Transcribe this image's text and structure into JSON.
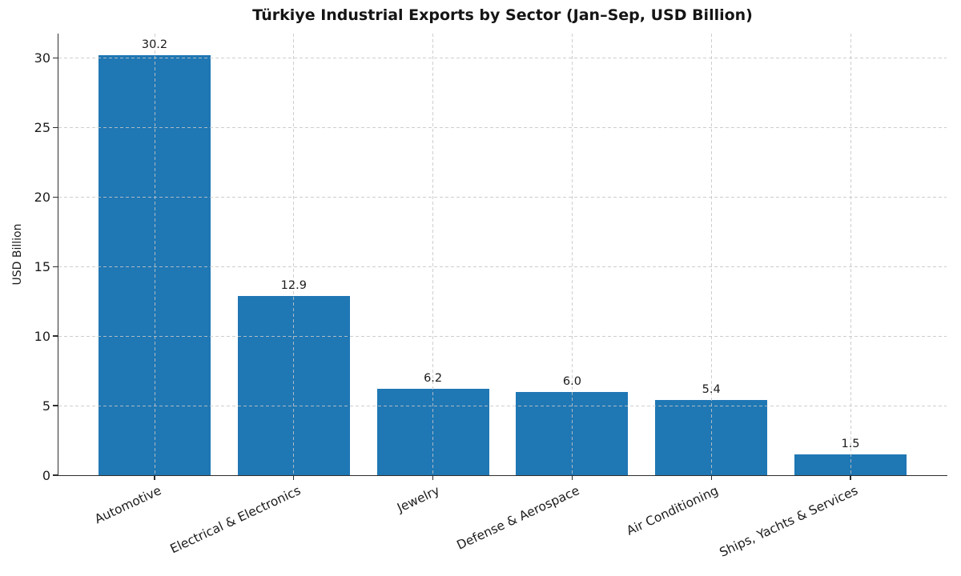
{
  "chart_data": {
    "type": "bar",
    "title": "Türkiye Industrial Exports by Sector (Jan–Sep, USD Billion)",
    "ylabel": "USD Billion",
    "xlabel": "",
    "categories": [
      "Automotive",
      "Electrical & Electronics",
      "Jewelry",
      "Defense & Aerospace",
      "Air Conditioning",
      "Ships, Yachts & Services"
    ],
    "values": [
      30.2,
      12.9,
      6.2,
      6.0,
      5.4,
      1.5
    ],
    "bar_value_labels": [
      "30.2",
      "12.9",
      "6.2",
      "6.0",
      "5.4",
      "1.5"
    ],
    "yticks": [
      0,
      5,
      10,
      15,
      20,
      25,
      30
    ],
    "ytick_labels": [
      "0",
      "5",
      "10",
      "15",
      "20",
      "25",
      "30"
    ],
    "ylim": [
      0,
      31.76
    ],
    "grid": "dashed, horizontal and vertical, drawn above bars",
    "legend": "none",
    "x_tick_rotation_deg": 25,
    "bar_color": "#1f77b4",
    "grid_color": "#c6c6c6",
    "spine_color": "#2e2e2e",
    "text_color": "#1a1a1a"
  }
}
